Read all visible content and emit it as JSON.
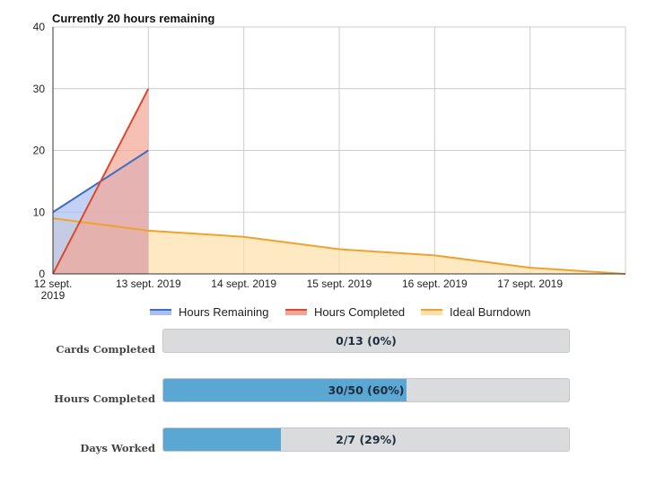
{
  "chart_data": {
    "type": "area",
    "title": "Currently 20 hours remaining",
    "x_categories": [
      "12 sept. 2019",
      "13 sept. 2019",
      "14 sept. 2019",
      "15 sept. 2019",
      "16 sept. 2019",
      "17 sept. 2019",
      ""
    ],
    "x_tick_labels": [
      [
        "12 sept.",
        "2019"
      ],
      [
        "13 sept. 2019"
      ],
      [
        "14 sept. 2019"
      ],
      [
        "15 sept. 2019"
      ],
      [
        "16 sept. 2019"
      ],
      [
        "17 sept. 2019"
      ]
    ],
    "y_ticks": [
      "40",
      "30",
      "20",
      "10",
      "0"
    ],
    "ylim": [
      0,
      40
    ],
    "grid": true,
    "legend_position": "bottom",
    "series": [
      {
        "name": "Ideal Burndown",
        "color": "#f0a22e",
        "fill": "#fddfa8",
        "values": [
          9,
          7,
          6,
          4,
          3,
          1,
          0
        ]
      },
      {
        "name": "Hours Remaining",
        "color": "#3e6ec5",
        "fill": "#a9bff0",
        "values": [
          10,
          20
        ]
      },
      {
        "name": "Hours Completed",
        "color": "#d84b31",
        "fill": "#f2a596",
        "values": [
          0,
          30
        ]
      }
    ],
    "legend_order": [
      "Hours Remaining",
      "Hours Completed",
      "Ideal Burndown"
    ]
  },
  "legend": {
    "hours_remaining": "Hours Remaining",
    "hours_completed": "Hours Completed",
    "ideal_burndown": "Ideal Burndown"
  },
  "stats": [
    {
      "label": "Cards Completed",
      "text": "0/13 (0%)",
      "fraction": 0.0
    },
    {
      "label": "Hours Completed",
      "text": "30/50 (60%)",
      "fraction": 0.6
    },
    {
      "label": "Days Worked",
      "text": "2/7 (29%)",
      "fraction": 0.29
    }
  ]
}
